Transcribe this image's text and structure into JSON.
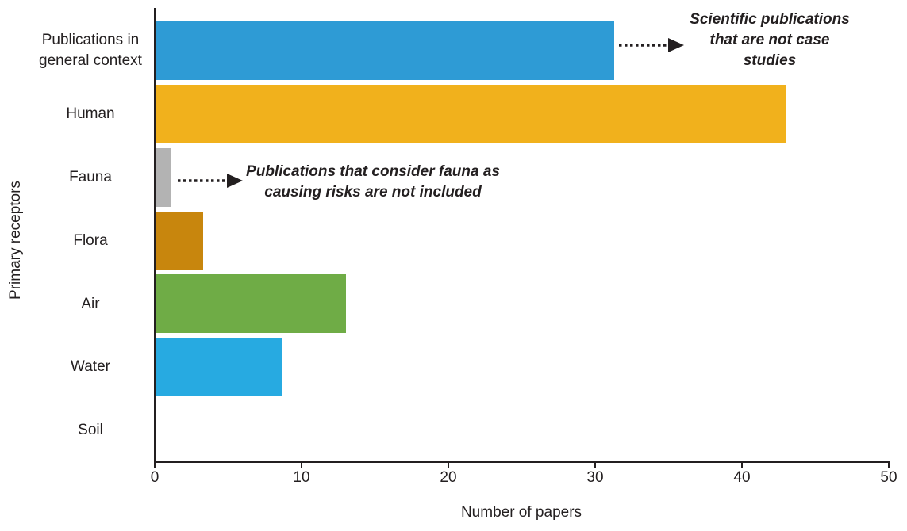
{
  "chart_data": {
    "type": "bar",
    "orientation": "horizontal",
    "title": "",
    "xlabel": "Number of papers",
    "ylabel": "Primary receptors",
    "categories": [
      "Publications in general context",
      "Human",
      "Fauna",
      "Flora",
      "Air",
      "Water",
      "Soil"
    ],
    "values": [
      31.3,
      43,
      1.1,
      3.3,
      13,
      8.7,
      0
    ],
    "colors": [
      "#2e9bd5",
      "#f1b11c",
      "#b3b3b3",
      "#c8860d",
      "#6fac46",
      "#27aae1",
      "#000000"
    ],
    "xlim": [
      0,
      50
    ],
    "xticks": [
      0,
      10,
      20,
      30,
      40,
      50
    ],
    "grid": false,
    "legend": "none",
    "annotations": [
      {
        "target": "Publications in general context",
        "lines": [
          "Scientific publications",
          "that are not case",
          "studies"
        ]
      },
      {
        "target": "Fauna",
        "lines": [
          "Publications that consider fauna as",
          "causing risks are not included"
        ]
      }
    ]
  }
}
